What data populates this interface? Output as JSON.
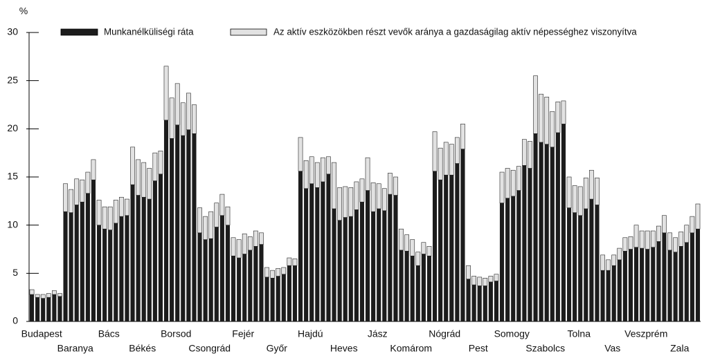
{
  "chart_data": {
    "type": "stacked_bar",
    "y_label": "%",
    "categories": [
      "Budapest",
      null,
      null,
      null,
      null,
      null,
      "Baranya",
      null,
      null,
      null,
      null,
      null,
      "Bács",
      null,
      null,
      null,
      null,
      null,
      "Békés",
      null,
      null,
      null,
      null,
      null,
      "Borsod",
      null,
      null,
      null,
      null,
      null,
      "Csongrád",
      null,
      null,
      null,
      null,
      null,
      "Fejér",
      null,
      null,
      null,
      null,
      null,
      "Győr",
      null,
      null,
      null,
      null,
      null,
      "Hajdú",
      null,
      null,
      null,
      null,
      null,
      "Heves",
      null,
      null,
      null,
      null,
      null,
      "Jász",
      null,
      null,
      null,
      null,
      null,
      "Komárom",
      null,
      null,
      null,
      null,
      null,
      "Nógrád",
      null,
      null,
      null,
      null,
      null,
      "Pest",
      null,
      null,
      null,
      null,
      null,
      "Somogy",
      null,
      null,
      null,
      null,
      null,
      "Szabolcs",
      null,
      null,
      null,
      null,
      null,
      "Tolna",
      null,
      null,
      null,
      null,
      null,
      "Vas",
      null,
      null,
      null,
      null,
      null,
      "Veszprém",
      null,
      null,
      null,
      null,
      null,
      "Zala",
      null,
      null,
      null,
      null,
      null
    ],
    "series": [
      {
        "name": "Munkanélküliségi ráta",
        "color": "#1c1c1c",
        "values": [
          2.8,
          2.5,
          2.4,
          2.5,
          2.8,
          2.6,
          11.4,
          11.3,
          12.1,
          12.4,
          13.3,
          14.7,
          10.0,
          9.6,
          9.5,
          10.2,
          10.9,
          11.0,
          14.2,
          13.1,
          12.9,
          12.7,
          14.6,
          15.3,
          20.9,
          19.0,
          20.4,
          19.3,
          19.9,
          19.5,
          9.2,
          8.5,
          8.6,
          9.8,
          11.0,
          10.0,
          6.8,
          6.6,
          7.0,
          7.4,
          7.8,
          8.0,
          4.6,
          4.5,
          4.7,
          4.9,
          5.8,
          5.8,
          15.6,
          13.8,
          14.3,
          13.9,
          14.5,
          15.3,
          11.7,
          10.5,
          10.8,
          10.9,
          11.6,
          12.4,
          13.6,
          11.4,
          11.7,
          11.5,
          13.2,
          13.1,
          7.4,
          7.3,
          6.8,
          5.8,
          7.0,
          6.8,
          15.6,
          14.7,
          15.2,
          15.2,
          16.4,
          17.9,
          4.4,
          3.8,
          3.7,
          3.7,
          4.1,
          4.2,
          12.3,
          12.8,
          13.0,
          13.6,
          16.2,
          15.9,
          19.5,
          18.6,
          18.4,
          18.1,
          19.6,
          20.5,
          11.8,
          11.3,
          11.0,
          11.7,
          12.7,
          12.1,
          5.3,
          5.3,
          5.8,
          6.4,
          7.3,
          7.5,
          7.7,
          7.6,
          7.5,
          7.7,
          8.3,
          9.2,
          7.4,
          7.2,
          7.8,
          8.2,
          9.2,
          9.6
        ]
      },
      {
        "name": "Az aktív eszközökben részt vevők aránya a gazdaságilag aktív népességhez viszonyítva",
        "color": "#e2e2e2",
        "values": [
          0.5,
          0.3,
          0.4,
          0.4,
          0.4,
          0.3,
          2.9,
          2.4,
          2.7,
          2.3,
          2.2,
          2.1,
          2.6,
          2.3,
          2.4,
          2.4,
          2.0,
          1.7,
          3.9,
          3.7,
          3.6,
          3.2,
          2.9,
          2.4,
          5.6,
          4.2,
          4.3,
          3.4,
          3.8,
          3.0,
          2.6,
          2.4,
          2.8,
          2.5,
          2.2,
          1.9,
          1.9,
          1.9,
          2.1,
          1.4,
          1.6,
          1.2,
          1.0,
          0.8,
          0.8,
          0.7,
          0.8,
          0.7,
          3.5,
          2.9,
          2.8,
          2.6,
          2.5,
          1.8,
          4.8,
          3.4,
          3.2,
          3.0,
          2.9,
          2.4,
          3.4,
          3.0,
          2.6,
          2.3,
          2.2,
          1.9,
          2.2,
          1.7,
          1.7,
          1.4,
          1.2,
          1.0,
          4.1,
          3.3,
          3.4,
          3.2,
          2.7,
          2.6,
          1.4,
          0.9,
          0.9,
          0.8,
          0.6,
          0.7,
          3.2,
          3.1,
          2.7,
          2.5,
          2.7,
          2.8,
          6.0,
          5.0,
          4.9,
          3.7,
          3.2,
          2.4,
          3.2,
          2.8,
          3.0,
          3.2,
          3.0,
          2.8,
          1.6,
          1.1,
          1.1,
          1.2,
          1.4,
          1.3,
          2.3,
          1.8,
          1.9,
          1.7,
          1.6,
          1.8,
          1.8,
          1.5,
          1.5,
          1.8,
          1.7,
          2.6
        ]
      }
    ],
    "ylim": [
      0,
      30
    ],
    "yticks": [
      0,
      5,
      10,
      15,
      20,
      25,
      30
    ],
    "grid": false,
    "legend": "top"
  }
}
